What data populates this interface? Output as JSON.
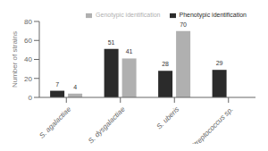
{
  "chart_data": {
    "type": "bar",
    "categories": [
      "S. agalactiae",
      "S. dysgalactiae",
      "S. uberis",
      "Streptococcus sp."
    ],
    "series": [
      {
        "name": "Phenotypic identification",
        "color": "#2b2b2b",
        "values": [
          7,
          51,
          28,
          29
        ]
      },
      {
        "name": "Genotypic identification",
        "color": "#b0b0b0",
        "values": [
          4,
          41,
          70,
          0
        ]
      }
    ],
    "ylabel": "Number of strains",
    "ylim": [
      0,
      80
    ],
    "yticks": [
      0,
      20,
      40,
      60,
      80
    ],
    "data_labels": true,
    "legend": "upper right",
    "grid": false
  }
}
